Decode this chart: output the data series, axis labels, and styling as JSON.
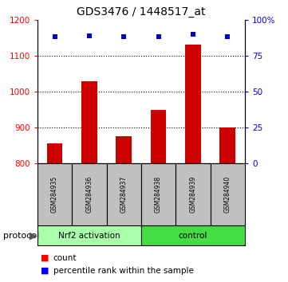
{
  "title": "GDS3476 / 1448517_at",
  "samples": [
    "GSM284935",
    "GSM284936",
    "GSM284937",
    "GSM284938",
    "GSM284939",
    "GSM284940"
  ],
  "counts": [
    855,
    1030,
    875,
    950,
    1130,
    900
  ],
  "percentile_ranks": [
    88,
    89,
    88,
    88.5,
    90,
    88
  ],
  "ylim_left": [
    800,
    1200
  ],
  "ylim_right": [
    0,
    100
  ],
  "yticks_left": [
    800,
    900,
    1000,
    1100,
    1200
  ],
  "yticks_right": [
    0,
    25,
    50,
    75,
    100
  ],
  "ytick_labels_right": [
    "0",
    "25",
    "50",
    "75",
    "100%"
  ],
  "bar_color": "#CC0000",
  "dot_color": "#0000CC",
  "sample_box_color": "#C0C0C0",
  "group_nrf2_color": "#AAFFAA",
  "group_control_color": "#44DD44",
  "group_nrf2_label": "Nrf2 activation",
  "group_control_label": "control",
  "protocol_label": "protocol",
  "legend_count": "count",
  "legend_percentile": "percentile rank within the sample"
}
